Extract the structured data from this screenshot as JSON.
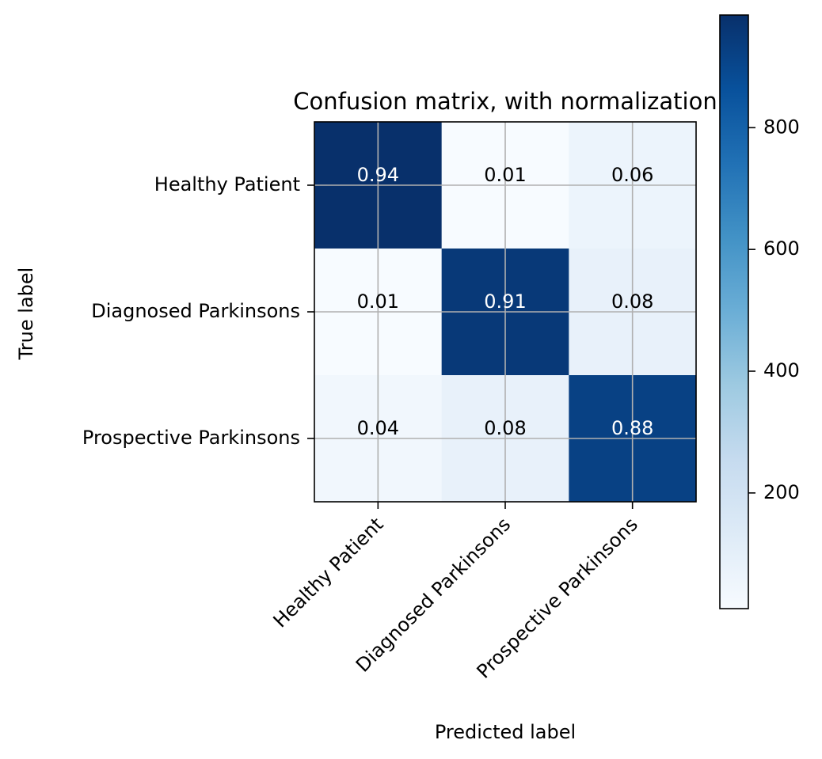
{
  "chart_data": {
    "type": "heatmap",
    "title": "Confusion matrix, with normalization",
    "xlabel": "Predicted label",
    "ylabel": "True label",
    "x_categories": [
      "Healthy Patient",
      "Diagnosed Parkinsons",
      "Prospective Parkinsons"
    ],
    "y_categories": [
      "Healthy Patient",
      "Diagnosed Parkinsons",
      "Prospective Parkinsons"
    ],
    "values": [
      [
        0.94,
        0.01,
        0.06
      ],
      [
        0.01,
        0.91,
        0.08
      ],
      [
        0.04,
        0.08,
        0.88
      ]
    ],
    "value_labels": [
      [
        "0.94",
        "0.01",
        "0.06"
      ],
      [
        "0.01",
        "0.91",
        "0.08"
      ],
      [
        "0.04",
        "0.08",
        "0.88"
      ]
    ],
    "colormap": "Blues",
    "colorbar": {
      "ticks": [
        200,
        400,
        600,
        800
      ],
      "tick_labels": [
        "200",
        "400",
        "600",
        "800"
      ],
      "range": [
        10,
        985
      ]
    },
    "grid": true,
    "colors": {
      "light": "#f7fbff",
      "dark": "#08306b",
      "text_on_dark": "#ffffff",
      "text_on_light": "#000000",
      "grid": "#b0b0b0"
    }
  }
}
